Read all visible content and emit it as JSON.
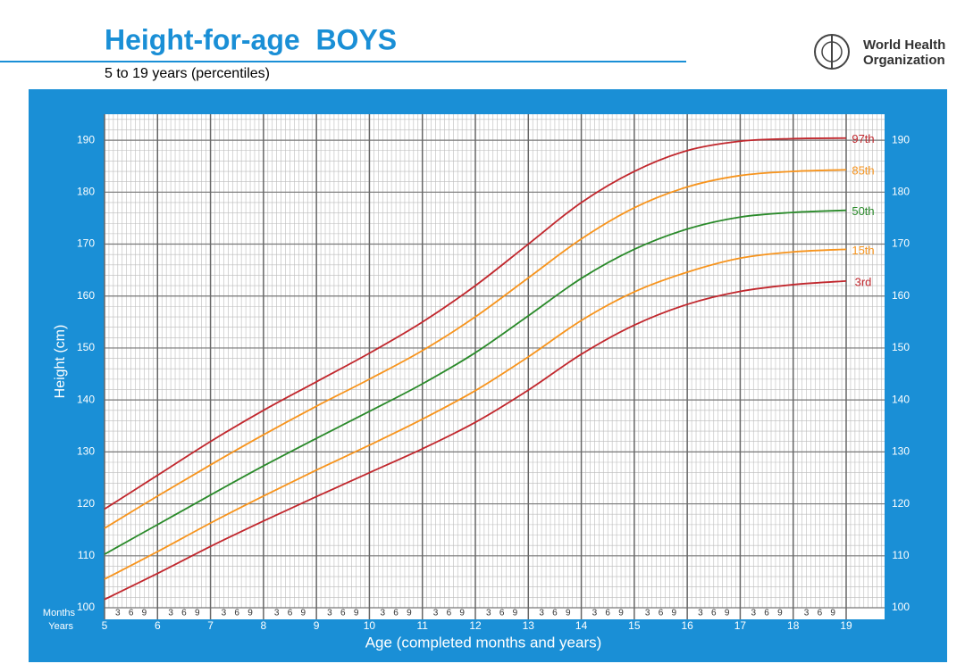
{
  "header": {
    "title": "Height-for-age  BOYS",
    "subtitle": "5 to 19 years (percentiles)",
    "org_line1": "World Health",
    "org_line2": "Organization"
  },
  "chart_data": {
    "type": "line",
    "ylabel": "Height (cm)",
    "xlabel": "Age (completed months and years)",
    "months_label": "Months",
    "years_label": "Years",
    "month_labels": [
      3,
      6,
      9
    ],
    "x": [
      5,
      6,
      7,
      8,
      9,
      10,
      11,
      12,
      13,
      14,
      15,
      16,
      17,
      18,
      19
    ],
    "xlim": [
      5,
      19
    ],
    "xticks": [
      5,
      6,
      7,
      8,
      9,
      10,
      11,
      12,
      13,
      14,
      15,
      16,
      17,
      18,
      19
    ],
    "ylim": [
      100,
      195
    ],
    "yticks": [
      100,
      110,
      120,
      130,
      140,
      150,
      160,
      170,
      180,
      190
    ],
    "grid": true,
    "series": [
      {
        "name": "97th",
        "color": "#c1272d",
        "values": [
          119,
          125.5,
          132,
          138,
          143.5,
          149,
          155,
          162,
          170,
          178,
          184,
          188,
          189.8,
          190.3,
          190.4
        ]
      },
      {
        "name": "85th",
        "color": "#f7941d",
        "values": [
          115.3,
          121.5,
          127.5,
          133.3,
          138.8,
          144,
          149.5,
          156,
          163.5,
          171,
          177,
          181,
          183.2,
          184,
          184.3
        ]
      },
      {
        "name": "50th",
        "color": "#2a8a2a",
        "values": [
          110.3,
          116,
          121.7,
          127.3,
          132.6,
          137.8,
          143.1,
          149.1,
          156.2,
          163.4,
          169,
          172.9,
          175.2,
          176.1,
          176.5
        ]
      },
      {
        "name": "15th",
        "color": "#f7941d",
        "values": [
          105.5,
          110.8,
          116.3,
          121.5,
          126.5,
          131.3,
          136.3,
          141.8,
          148.3,
          155.3,
          160.8,
          164.6,
          167.3,
          168.5,
          169
        ]
      },
      {
        "name": "3rd",
        "color": "#c1272d",
        "values": [
          101.6,
          106.6,
          111.8,
          116.7,
          121.4,
          126,
          130.6,
          135.7,
          141.9,
          148.8,
          154.4,
          158.4,
          160.9,
          162.2,
          162.9
        ]
      }
    ]
  }
}
